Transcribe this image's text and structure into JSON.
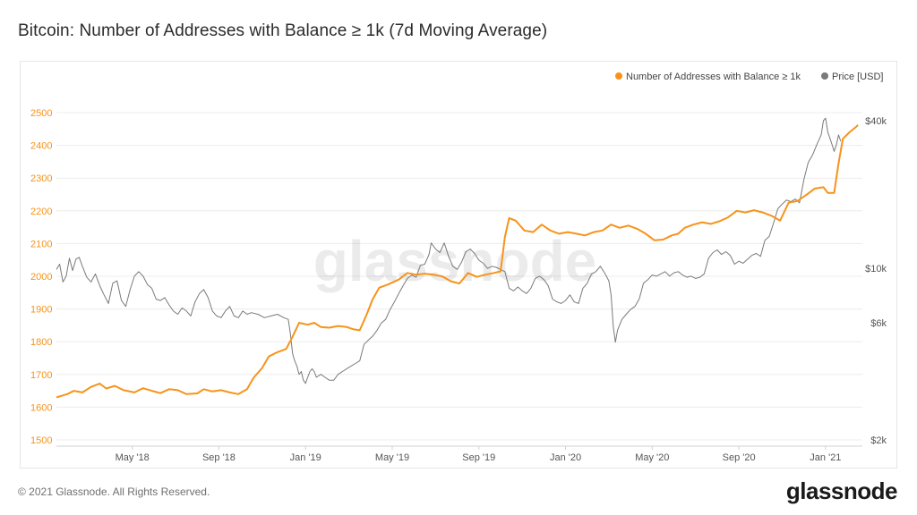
{
  "page": {
    "title": "Bitcoin: Number of Addresses with Balance ≥ 1k (7d Moving Average)",
    "copyright": "© 2021 Glassnode. All Rights Reserved.",
    "brand": "glassnode",
    "watermark": "glassnode"
  },
  "colors": {
    "orange": "#f7931a",
    "gray": "#7a7a7a",
    "grid": "#ececec",
    "axis": "#d0d0d0"
  },
  "chart_data": {
    "type": "line",
    "title": "Bitcoin: Number of Addresses with Balance ≥ 1k (7d Moving Average)",
    "x_ticks": [
      "May '18",
      "Sep '18",
      "Jan '19",
      "May '19",
      "Sep '19",
      "Jan '20",
      "May '20",
      "Sep '20",
      "Jan '21"
    ],
    "x_tick_positions": [
      3.5,
      7.5,
      11.5,
      15.5,
      19.5,
      23.5,
      27.5,
      31.5,
      35.5
    ],
    "x_range": [
      0,
      36.25
    ],
    "y_left": {
      "ticks": [
        1500,
        1600,
        1700,
        1800,
        1900,
        2000,
        2100,
        2200,
        2300,
        2400,
        2500
      ],
      "range": [
        1500,
        2500
      ]
    },
    "y_right": {
      "ticks": [
        "$2k",
        "$6k",
        "$10k",
        "$40k"
      ],
      "values": [
        2000,
        6000,
        10000,
        40000
      ],
      "scale": "log"
    },
    "grid": "horizontal",
    "legend_position": "top-right",
    "series": [
      {
        "name": "Number of Addresses with Balance ≥ 1k",
        "axis": "left",
        "points": [
          [
            0,
            1630
          ],
          [
            0.5,
            1640
          ],
          [
            0.8,
            1650
          ],
          [
            1.2,
            1645
          ],
          [
            1.6,
            1662
          ],
          [
            2,
            1672
          ],
          [
            2.3,
            1657
          ],
          [
            2.7,
            1665
          ],
          [
            3.1,
            1652
          ],
          [
            3.6,
            1645
          ],
          [
            4,
            1658
          ],
          [
            4.4,
            1650
          ],
          [
            4.8,
            1643
          ],
          [
            5.2,
            1655
          ],
          [
            5.6,
            1652
          ],
          [
            6,
            1640
          ],
          [
            6.5,
            1642
          ],
          [
            6.8,
            1655
          ],
          [
            7.2,
            1648
          ],
          [
            7.6,
            1652
          ],
          [
            8,
            1645
          ],
          [
            8.4,
            1640
          ],
          [
            8.8,
            1655
          ],
          [
            9.1,
            1690
          ],
          [
            9.5,
            1720
          ],
          [
            9.8,
            1755
          ],
          [
            10.2,
            1768
          ],
          [
            10.6,
            1778
          ],
          [
            10.9,
            1815
          ],
          [
            11.2,
            1858
          ],
          [
            11.6,
            1852
          ],
          [
            11.9,
            1858
          ],
          [
            12.2,
            1845
          ],
          [
            12.6,
            1843
          ],
          [
            13,
            1848
          ],
          [
            13.4,
            1845
          ],
          [
            13.7,
            1838
          ],
          [
            14,
            1835
          ],
          [
            14.3,
            1880
          ],
          [
            14.6,
            1930
          ],
          [
            14.9,
            1965
          ],
          [
            15.3,
            1975
          ],
          [
            15.8,
            1990
          ],
          [
            16.2,
            2010
          ],
          [
            16.6,
            2005
          ],
          [
            17,
            2008
          ],
          [
            17.4,
            2005
          ],
          [
            17.8,
            2000
          ],
          [
            18.2,
            1985
          ],
          [
            18.6,
            1978
          ],
          [
            19,
            2010
          ],
          [
            19.4,
            1998
          ],
          [
            19.8,
            2005
          ],
          [
            20.2,
            2010
          ],
          [
            20.5,
            2015
          ],
          [
            20.7,
            2120
          ],
          [
            20.9,
            2178
          ],
          [
            21.2,
            2170
          ],
          [
            21.6,
            2140
          ],
          [
            22,
            2135
          ],
          [
            22.4,
            2158
          ],
          [
            22.8,
            2140
          ],
          [
            23.2,
            2130
          ],
          [
            23.6,
            2135
          ],
          [
            24,
            2130
          ],
          [
            24.4,
            2125
          ],
          [
            24.8,
            2135
          ],
          [
            25.2,
            2140
          ],
          [
            25.6,
            2158
          ],
          [
            26,
            2148
          ],
          [
            26.4,
            2155
          ],
          [
            26.8,
            2145
          ],
          [
            27.2,
            2130
          ],
          [
            27.6,
            2110
          ],
          [
            28,
            2112
          ],
          [
            28.4,
            2125
          ],
          [
            28.7,
            2130
          ],
          [
            29,
            2148
          ],
          [
            29.4,
            2158
          ],
          [
            29.8,
            2165
          ],
          [
            30.2,
            2160
          ],
          [
            30.6,
            2168
          ],
          [
            31,
            2180
          ],
          [
            31.4,
            2200
          ],
          [
            31.8,
            2195
          ],
          [
            32.2,
            2202
          ],
          [
            32.6,
            2195
          ],
          [
            33,
            2185
          ],
          [
            33.4,
            2170
          ],
          [
            33.8,
            2225
          ],
          [
            34.2,
            2230
          ],
          [
            34.6,
            2248
          ],
          [
            35,
            2268
          ],
          [
            35.4,
            2272
          ],
          [
            35.6,
            2255
          ],
          [
            35.9,
            2255
          ],
          [
            36.1,
            2345
          ],
          [
            36.3,
            2420
          ],
          [
            36.6,
            2440
          ],
          [
            36.9,
            2456
          ],
          [
            37.0,
            2462
          ]
        ]
      },
      {
        "name": "Price [USD]",
        "axis": "right",
        "points": [
          [
            0,
            9900
          ],
          [
            0.15,
            10400
          ],
          [
            0.3,
            8800
          ],
          [
            0.45,
            9300
          ],
          [
            0.6,
            11000
          ],
          [
            0.75,
            9800
          ],
          [
            0.9,
            10900
          ],
          [
            1.05,
            11100
          ],
          [
            1.2,
            10200
          ],
          [
            1.4,
            9200
          ],
          [
            1.6,
            8800
          ],
          [
            1.8,
            9500
          ],
          [
            2,
            8500
          ],
          [
            2.2,
            7800
          ],
          [
            2.4,
            7200
          ],
          [
            2.6,
            8700
          ],
          [
            2.8,
            8900
          ],
          [
            3,
            7400
          ],
          [
            3.2,
            7000
          ],
          [
            3.4,
            8200
          ],
          [
            3.6,
            9300
          ],
          [
            3.8,
            9700
          ],
          [
            4,
            9300
          ],
          [
            4.2,
            8600
          ],
          [
            4.4,
            8300
          ],
          [
            4.6,
            7500
          ],
          [
            4.8,
            7400
          ],
          [
            5,
            7600
          ],
          [
            5.2,
            7100
          ],
          [
            5.4,
            6700
          ],
          [
            5.6,
            6500
          ],
          [
            5.8,
            6900
          ],
          [
            6,
            6700
          ],
          [
            6.2,
            6400
          ],
          [
            6.4,
            7300
          ],
          [
            6.6,
            7900
          ],
          [
            6.8,
            8200
          ],
          [
            7,
            7600
          ],
          [
            7.2,
            6700
          ],
          [
            7.4,
            6400
          ],
          [
            7.6,
            6300
          ],
          [
            7.8,
            6700
          ],
          [
            8,
            7000
          ],
          [
            8.2,
            6400
          ],
          [
            8.4,
            6300
          ],
          [
            8.6,
            6700
          ],
          [
            8.8,
            6500
          ],
          [
            9,
            6600
          ],
          [
            9.3,
            6500
          ],
          [
            9.6,
            6300
          ],
          [
            9.9,
            6400
          ],
          [
            10.2,
            6500
          ],
          [
            10.5,
            6300
          ],
          [
            10.7,
            6200
          ],
          [
            10.8,
            5400
          ],
          [
            10.9,
            4500
          ],
          [
            11.0,
            4200
          ],
          [
            11.1,
            4000
          ],
          [
            11.2,
            3700
          ],
          [
            11.3,
            3800
          ],
          [
            11.4,
            3500
          ],
          [
            11.5,
            3400
          ],
          [
            11.6,
            3600
          ],
          [
            11.7,
            3800
          ],
          [
            11.8,
            3900
          ],
          [
            11.9,
            3800
          ],
          [
            12,
            3600
          ],
          [
            12.2,
            3700
          ],
          [
            12.4,
            3600
          ],
          [
            12.6,
            3500
          ],
          [
            12.8,
            3500
          ],
          [
            13,
            3700
          ],
          [
            13.2,
            3800
          ],
          [
            13.4,
            3900
          ],
          [
            13.6,
            4000
          ],
          [
            13.8,
            4100
          ],
          [
            14,
            4200
          ],
          [
            14.2,
            4900
          ],
          [
            14.4,
            5100
          ],
          [
            14.6,
            5300
          ],
          [
            14.8,
            5600
          ],
          [
            15,
            6000
          ],
          [
            15.2,
            6200
          ],
          [
            15.4,
            6800
          ],
          [
            15.6,
            7300
          ],
          [
            15.8,
            7900
          ],
          [
            16,
            8500
          ],
          [
            16.2,
            9100
          ],
          [
            16.4,
            9400
          ],
          [
            16.6,
            9200
          ],
          [
            16.8,
            10300
          ],
          [
            17,
            10400
          ],
          [
            17.2,
            11400
          ],
          [
            17.3,
            12700
          ],
          [
            17.5,
            12000
          ],
          [
            17.7,
            11600
          ],
          [
            17.9,
            12700
          ],
          [
            18.1,
            11200
          ],
          [
            18.3,
            10200
          ],
          [
            18.5,
            9900
          ],
          [
            18.7,
            10600
          ],
          [
            18.9,
            11700
          ],
          [
            19.1,
            12000
          ],
          [
            19.3,
            11500
          ],
          [
            19.5,
            10800
          ],
          [
            19.7,
            10500
          ],
          [
            19.9,
            10000
          ],
          [
            20.1,
            10200
          ],
          [
            20.3,
            10100
          ],
          [
            20.5,
            9900
          ],
          [
            20.7,
            9700
          ],
          [
            20.9,
            8300
          ],
          [
            21.1,
            8100
          ],
          [
            21.3,
            8400
          ],
          [
            21.5,
            8100
          ],
          [
            21.7,
            7900
          ],
          [
            21.9,
            8300
          ],
          [
            22.1,
            9100
          ],
          [
            22.3,
            9300
          ],
          [
            22.5,
            9000
          ],
          [
            22.7,
            8500
          ],
          [
            22.9,
            7500
          ],
          [
            23.1,
            7300
          ],
          [
            23.3,
            7200
          ],
          [
            23.5,
            7400
          ],
          [
            23.7,
            7800
          ],
          [
            23.9,
            7300
          ],
          [
            24.1,
            7200
          ],
          [
            24.3,
            8300
          ],
          [
            24.5,
            8700
          ],
          [
            24.7,
            9500
          ],
          [
            24.9,
            9700
          ],
          [
            25.1,
            10200
          ],
          [
            25.3,
            9600
          ],
          [
            25.5,
            8900
          ],
          [
            25.6,
            7800
          ],
          [
            25.7,
            5800
          ],
          [
            25.8,
            5000
          ],
          [
            25.9,
            5600
          ],
          [
            26.1,
            6200
          ],
          [
            26.3,
            6500
          ],
          [
            26.5,
            6800
          ],
          [
            26.7,
            7000
          ],
          [
            26.9,
            7500
          ],
          [
            27.1,
            8700
          ],
          [
            27.3,
            9000
          ],
          [
            27.5,
            9400
          ],
          [
            27.7,
            9300
          ],
          [
            27.9,
            9500
          ],
          [
            28.1,
            9700
          ],
          [
            28.3,
            9300
          ],
          [
            28.5,
            9600
          ],
          [
            28.7,
            9700
          ],
          [
            28.9,
            9400
          ],
          [
            29.1,
            9200
          ],
          [
            29.3,
            9300
          ],
          [
            29.5,
            9100
          ],
          [
            29.7,
            9200
          ],
          [
            29.9,
            9500
          ],
          [
            30.1,
            11000
          ],
          [
            30.3,
            11600
          ],
          [
            30.5,
            11900
          ],
          [
            30.7,
            11400
          ],
          [
            30.9,
            11700
          ],
          [
            31.1,
            11300
          ],
          [
            31.3,
            10400
          ],
          [
            31.5,
            10700
          ],
          [
            31.7,
            10500
          ],
          [
            31.9,
            10900
          ],
          [
            32.1,
            11300
          ],
          [
            32.3,
            11500
          ],
          [
            32.5,
            11200
          ],
          [
            32.7,
            13000
          ],
          [
            32.9,
            13500
          ],
          [
            33.1,
            15300
          ],
          [
            33.3,
            17500
          ],
          [
            33.5,
            18300
          ],
          [
            33.7,
            19000
          ],
          [
            33.9,
            18700
          ],
          [
            34.1,
            19200
          ],
          [
            34.3,
            18500
          ],
          [
            34.5,
            23000
          ],
          [
            34.7,
            27000
          ],
          [
            34.9,
            29000
          ],
          [
            35.1,
            32000
          ],
          [
            35.3,
            35000
          ],
          [
            35.4,
            40000
          ],
          [
            35.5,
            41000
          ],
          [
            35.6,
            36000
          ],
          [
            35.7,
            34000
          ],
          [
            35.8,
            32000
          ],
          [
            35.9,
            30000
          ],
          [
            36.0,
            32000
          ],
          [
            36.1,
            35000
          ],
          [
            36.2,
            33000
          ]
        ]
      }
    ]
  }
}
